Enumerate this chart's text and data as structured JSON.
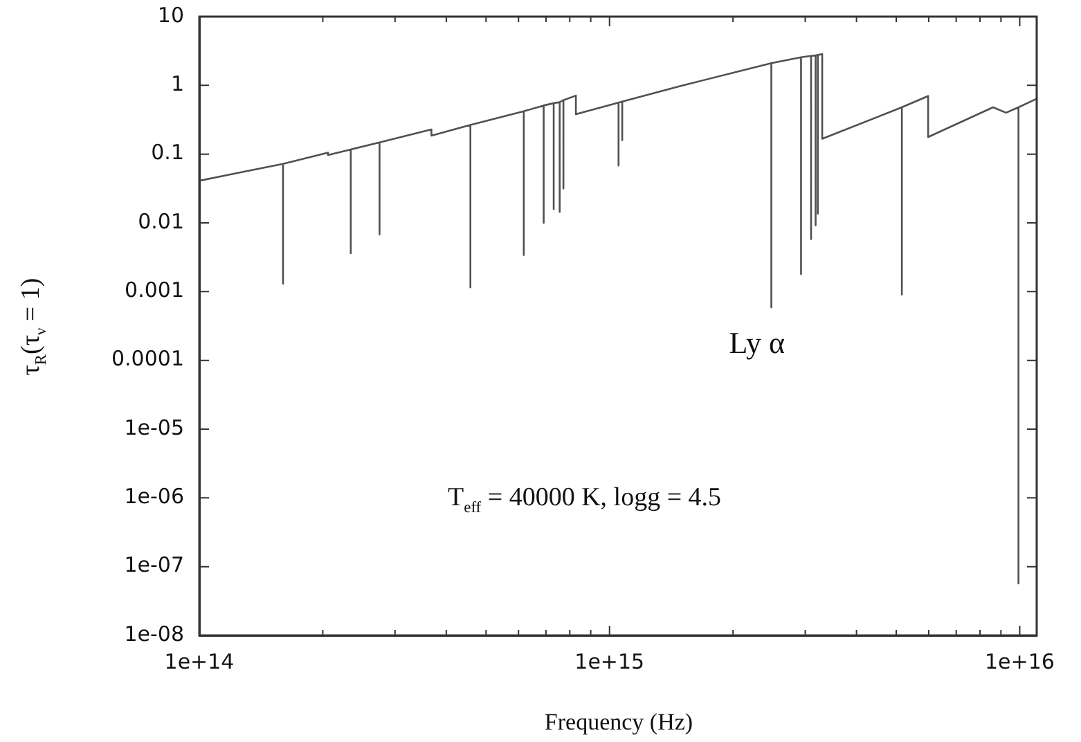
{
  "chart_data": {
    "type": "line",
    "xlabel": "Frequency (Hz)",
    "ylabel": "τ$_{R}$(τ$_{ν}$ = 1)",
    "log": "xy",
    "color": "#505050",
    "xlim": [
      100000000000000.0,
      1.1e+16
    ],
    "ylim": [
      1e-08,
      10
    ],
    "xticks": [
      {
        "value": 100000000000000.0,
        "label": "1e+14"
      },
      {
        "value": 200000000000000.0,
        "label": null
      },
      {
        "value": 300000000000000.0,
        "label": null
      },
      {
        "value": 400000000000000.0,
        "label": null
      },
      {
        "value": 500000000000000.0,
        "label": null
      },
      {
        "value": 600000000000000.0,
        "label": null
      },
      {
        "value": 700000000000000.0,
        "label": null
      },
      {
        "value": 800000000000000.0,
        "label": null
      },
      {
        "value": 900000000000000.0,
        "label": null
      },
      {
        "value": 1000000000000000.0,
        "label": "1e+15"
      },
      {
        "value": 2000000000000000.0,
        "label": null
      },
      {
        "value": 3000000000000000.0,
        "label": null
      },
      {
        "value": 4000000000000000.0,
        "label": null
      },
      {
        "value": 5000000000000000.0,
        "label": null
      },
      {
        "value": 6000000000000000.0,
        "label": null
      },
      {
        "value": 7000000000000000.0,
        "label": null
      },
      {
        "value": 8000000000000000.0,
        "label": null
      },
      {
        "value": 9000000000000000.0,
        "label": null
      },
      {
        "value": 1e+16,
        "label": "1e+16"
      }
    ],
    "yticks": [
      {
        "value": 1e-08,
        "label": "1e-08"
      },
      {
        "value": 1e-07,
        "label": "1e-07"
      },
      {
        "value": 1e-06,
        "label": "1e-06"
      },
      {
        "value": 1e-05,
        "label": "1e-05"
      },
      0.0001,
      0.001,
      0.01,
      0.1,
      1,
      10
    ],
    "x": [
      100000000000000.0,
      133000000000000.0,
      160000000000000.0,
      160000000000000.0,
      160000000000000.0,
      206000000000000.0,
      206000000000000.0,
      234000000000000.0,
      234000000000000.0,
      234000000000000.0,
      275000000000000.0,
      275000000000000.0,
      275000000000000.0,
      368000000000000.0,
      368000000000000.0,
      458000000000000.0,
      458000000000000.0,
      458000000000000.0,
      618000000000000.0,
      618000000000000.0,
      618000000000000.0,
      691000000000000.0,
      691000000000000.0,
      691000000000000.0,
      731000000000000.0,
      731000000000000.0,
      731000000000000.0,
      756000000000000.0,
      756000000000000.0,
      756000000000000.0,
      772000000000000.0,
      772000000000000.0,
      772000000000000.0,
      828000000000000.0,
      828000000000000.0,
      1052000000000000.0,
      1052000000000000.0,
      1052000000000000.0,
      1074000000000000.0,
      1074000000000000.0,
      1074000000000000.0,
      1490000000000000.0,
      2480000000000000.0,
      2480000000000000.0,
      2480000000000000.0,
      2930000000000000.0,
      2930000000000000.0,
      2930000000000000.0,
      3100000000000000.0,
      3100000000000000.0,
      3100000000000000.0,
      3180000000000000.0,
      3180000000000000.0,
      3180000000000000.0,
      3220000000000000.0,
      3220000000000000.0,
      3220000000000000.0,
      3300000000000000.0,
      3300000000000000.0,
      5160000000000000.0,
      5160000000000000.0,
      5160000000000000.0,
      5980000000000000.0,
      5980000000000000.0,
      8610000000000000.0,
      9260000000000000.0,
      9930000000000000.0,
      9930000000000000.0,
      9930000000000000.0,
      1.1e+16
    ],
    "values": [
      0.041,
      0.058,
      0.072,
      0.0013,
      0.072,
      0.105,
      0.097,
      0.117,
      0.0036,
      0.117,
      0.148,
      0.0068,
      0.148,
      0.228,
      0.186,
      0.266,
      0.00115,
      0.266,
      0.42,
      0.0034,
      0.42,
      0.51,
      0.01,
      0.51,
      0.55,
      0.0158,
      0.55,
      0.57,
      0.0144,
      0.57,
      0.61,
      0.0316,
      0.61,
      0.71,
      0.38,
      0.56,
      0.068,
      0.56,
      0.58,
      0.16,
      0.58,
      0.98,
      2.1,
      0.00059,
      2.1,
      2.56,
      0.0018,
      2.56,
      2.68,
      0.0058,
      2.68,
      2.72,
      0.0092,
      2.72,
      2.77,
      0.0136,
      2.77,
      2.85,
      0.167,
      0.48,
      0.00091,
      0.48,
      0.7,
      0.177,
      0.48,
      0.4,
      0.48,
      5.7e-08,
      0.48,
      0.64
    ],
    "annotations": [
      "Ly α",
      "T$_{eff}$ = 40000 K, logg = 4.5"
    ]
  }
}
